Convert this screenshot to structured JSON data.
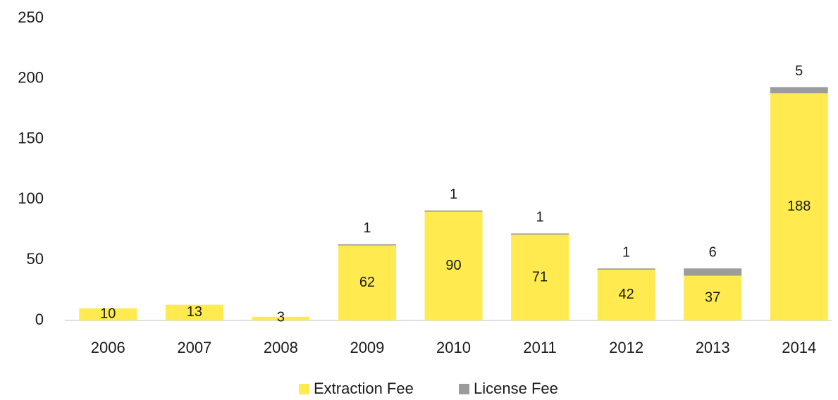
{
  "chart_data": {
    "type": "stacked_bar",
    "categories": [
      "2006",
      "2007",
      "2008",
      "2009",
      "2010",
      "2011",
      "2012",
      "2013",
      "2014"
    ],
    "series": [
      {
        "name": "Extraction Fee",
        "color": "#ffeb4f",
        "values": [
          10,
          13,
          3,
          62,
          90,
          71,
          42,
          37,
          188
        ]
      },
      {
        "name": "License Fee",
        "color": "#9b9b9b",
        "values": [
          null,
          null,
          null,
          1,
          1,
          1,
          1,
          6,
          5
        ]
      }
    ],
    "ylim": [
      0,
      250
    ],
    "yticks": [
      0,
      50,
      100,
      150,
      200,
      250
    ],
    "grid": false,
    "legend": "bottom"
  }
}
